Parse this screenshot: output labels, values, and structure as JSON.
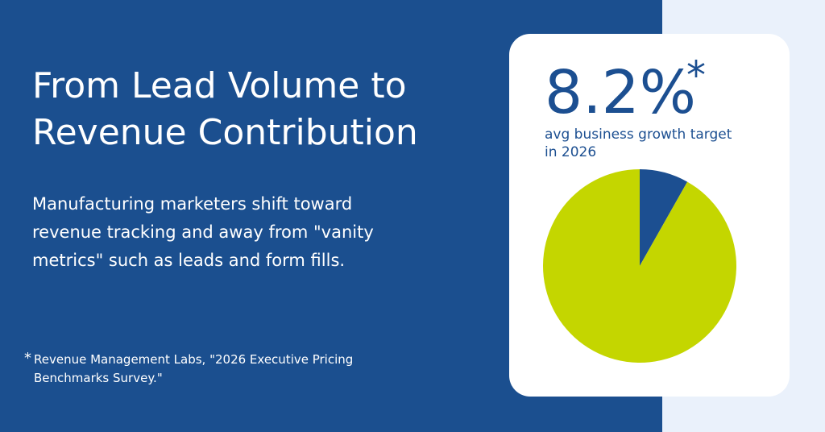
{
  "header": {
    "title": "From Lead Volume to Revenue Contribution",
    "body": "Manufacturing marketers shift toward revenue tracking and away from \"vanity metrics\" such as leads and form fills."
  },
  "footnote": {
    "marker": "*",
    "text": "Revenue Management Labs, \"2026 Executive Pricing Benchmarks Survey.\""
  },
  "chart_data": {
    "type": "pie",
    "values": [
      8.2,
      91.8
    ],
    "value_labels": [
      "8.2%",
      null
    ],
    "colors": [
      "#1c4f91",
      "#c4d600"
    ],
    "subtitle": "avg business growth target in 2026"
  }
}
